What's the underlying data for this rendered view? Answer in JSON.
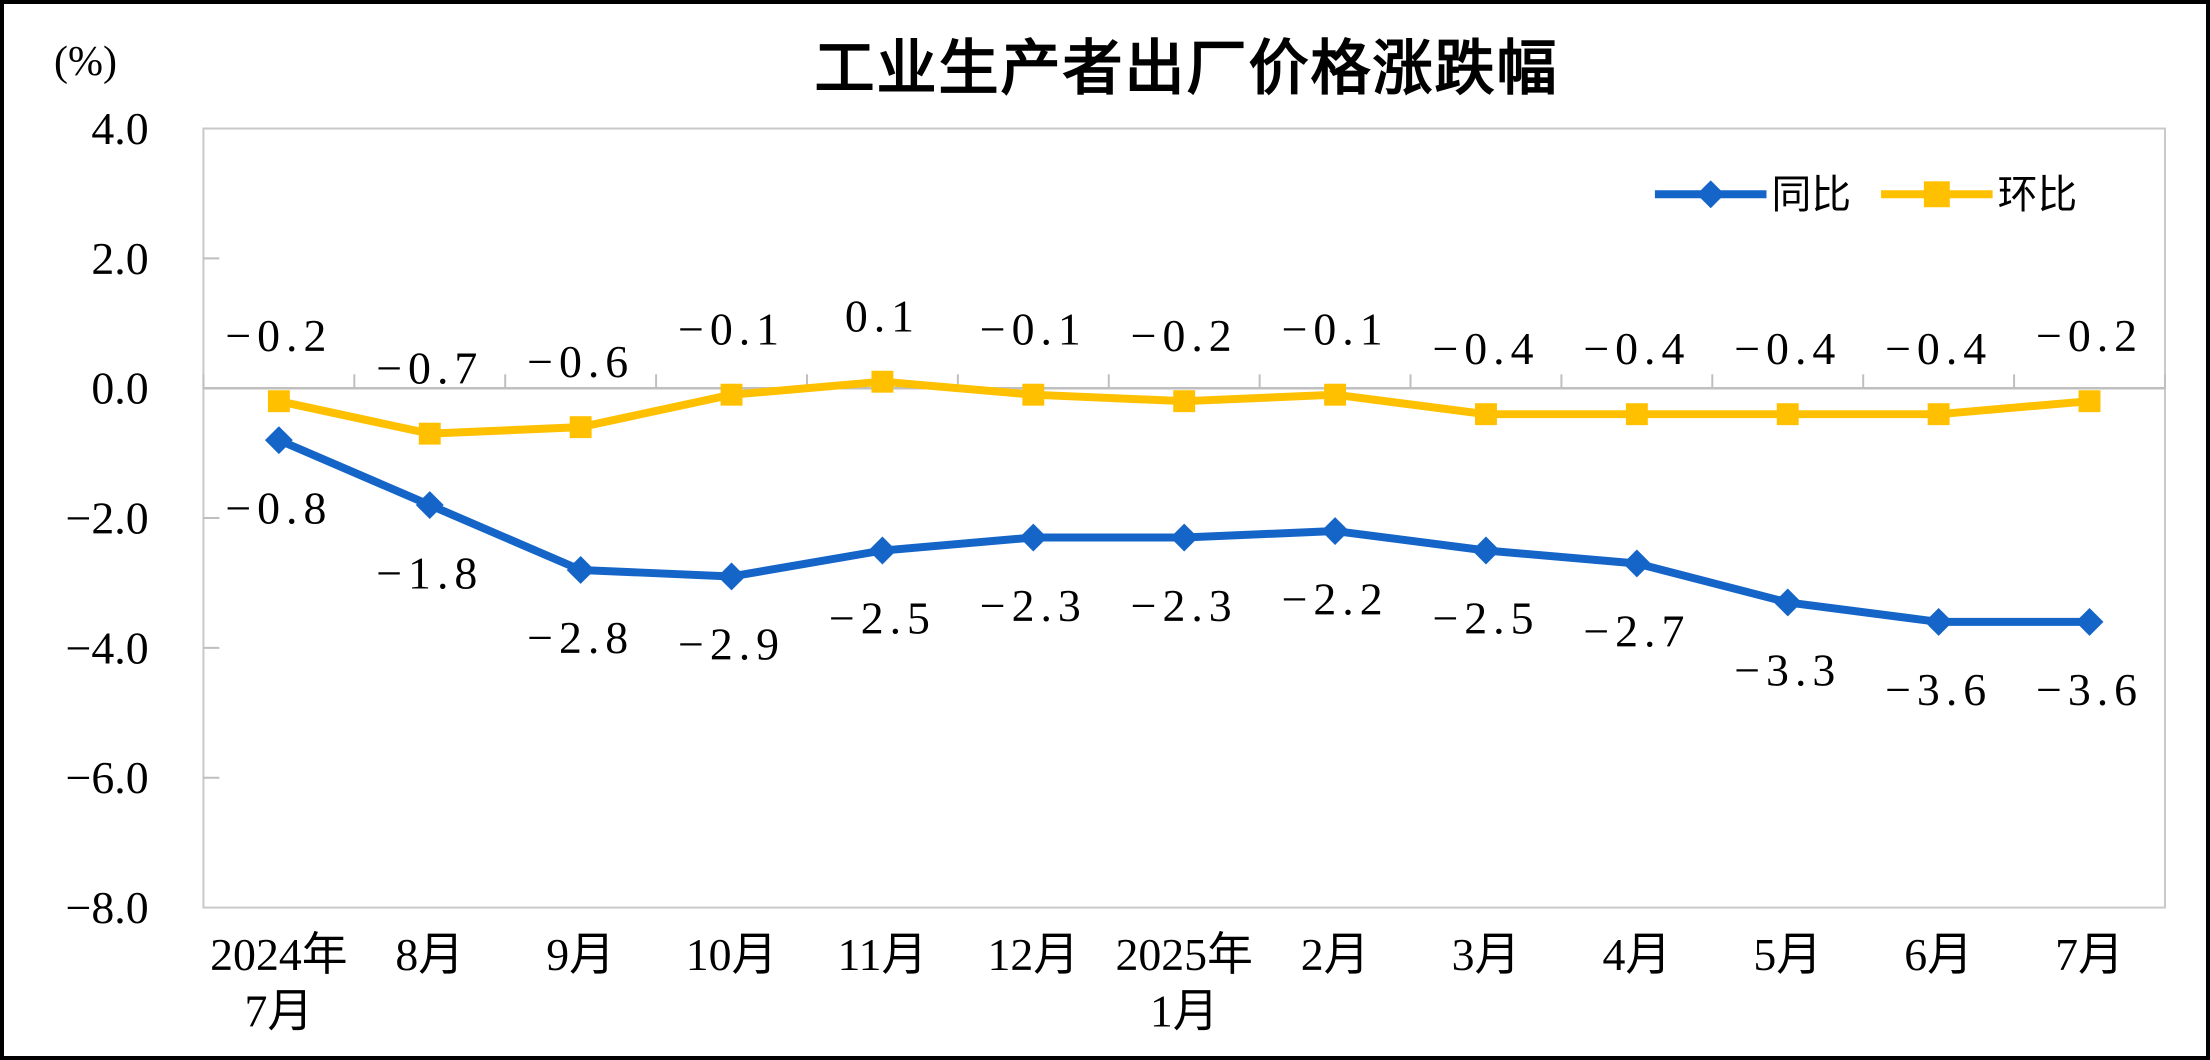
{
  "title": "工业生产者出厂价格涨跌幅",
  "unit_label": "(%)",
  "legend": {
    "items": [
      {
        "id": "yoy",
        "label": "同比",
        "color": "#1565C8",
        "marker": "diamond"
      },
      {
        "id": "mom",
        "label": "环比",
        "color": "#FFC000",
        "marker": "square"
      }
    ]
  },
  "chart_data": {
    "type": "line",
    "title": "工业生产者出厂价格涨跌幅",
    "ylabel": "(%)",
    "categories": [
      [
        "2024年",
        "7月"
      ],
      [
        "8月"
      ],
      [
        "9月"
      ],
      [
        "10月"
      ],
      [
        "11月"
      ],
      [
        "12月"
      ],
      [
        "2025年",
        "1月"
      ],
      [
        "2月"
      ],
      [
        "3月"
      ],
      [
        "4月"
      ],
      [
        "5月"
      ],
      [
        "6月"
      ],
      [
        "7月"
      ]
    ],
    "series": [
      {
        "id": "yoy",
        "name": "同比",
        "color": "#1565C8",
        "marker": "diamond",
        "label_position": "below",
        "values": [
          -0.8,
          -1.8,
          -2.8,
          -2.9,
          -2.5,
          -2.3,
          -2.3,
          -2.2,
          -2.5,
          -2.7,
          -3.3,
          -3.6,
          -3.6
        ]
      },
      {
        "id": "mom",
        "name": "环比",
        "color": "#FFC000",
        "marker": "square",
        "label_position": "above",
        "values": [
          -0.2,
          -0.7,
          -0.6,
          -0.1,
          0.1,
          -0.1,
          -0.2,
          -0.1,
          -0.4,
          -0.4,
          -0.4,
          -0.4,
          -0.2
        ]
      }
    ],
    "ylim": [
      -8.0,
      4.0
    ],
    "ytick_step": 2.0,
    "ytick_labels": [
      "4.0",
      "2.0",
      "0.0",
      "-2.0",
      "-4.0",
      "-6.0",
      "-8.0"
    ],
    "grid": "zero-line-only",
    "legend_position": "top-right-inside",
    "axis_color": "#C9C9C9",
    "tick_color": "#BFBFBF"
  }
}
